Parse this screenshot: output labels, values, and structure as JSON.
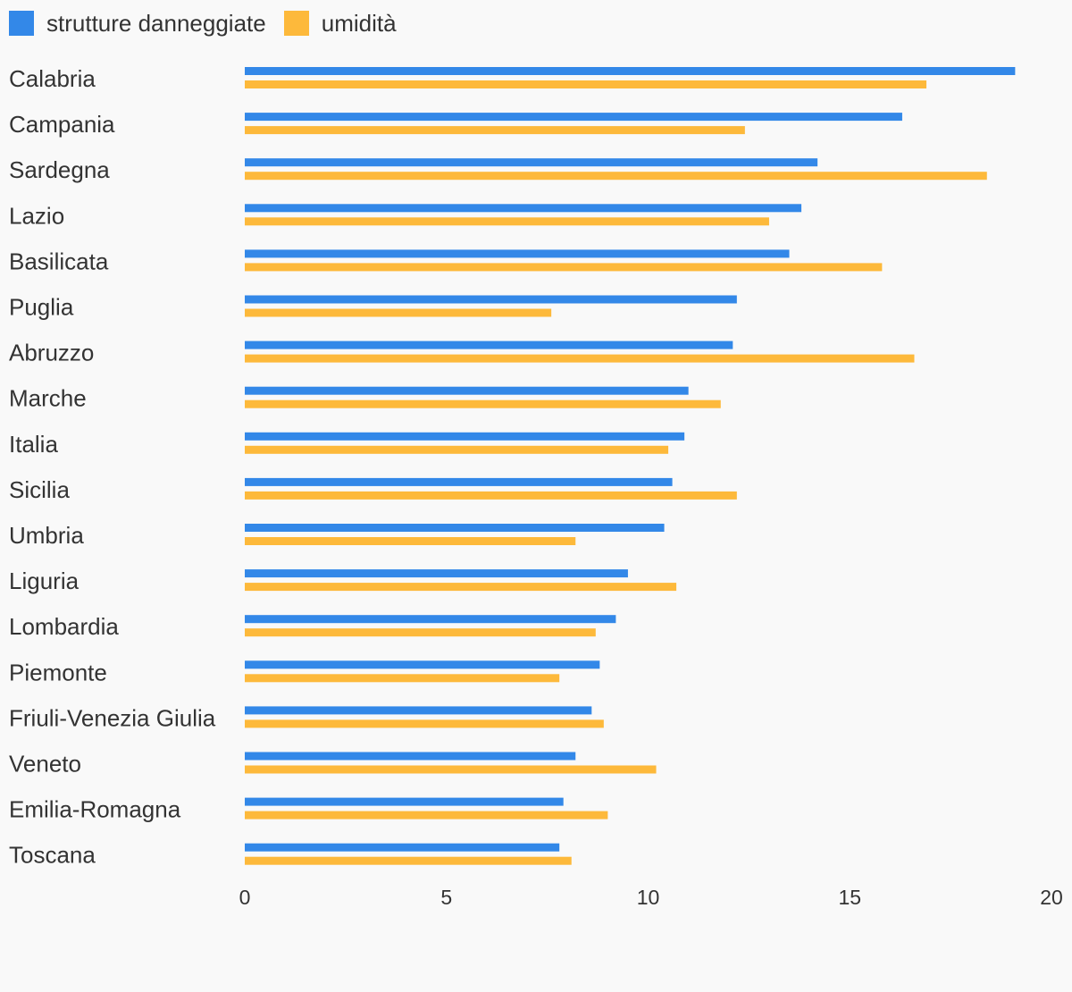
{
  "legend": {
    "items": [
      {
        "label": "strutture danneggiate",
        "color": "#3388e8"
      },
      {
        "label": "umidità",
        "color": "#fdb93b"
      }
    ]
  },
  "chart_data": {
    "type": "bar",
    "orientation": "horizontal",
    "categories": [
      "Calabria",
      "Campania",
      "Sardegna",
      "Lazio",
      "Basilicata",
      "Puglia",
      "Abruzzo",
      "Marche",
      "Italia",
      "Sicilia",
      "Umbria",
      "Liguria",
      "Lombardia",
      "Piemonte",
      "Friuli-Venezia Giulia",
      "Veneto",
      "Emilia-Romagna",
      "Toscana"
    ],
    "series": [
      {
        "name": "strutture danneggiate",
        "color": "#3388e8",
        "values": [
          19.1,
          16.3,
          14.2,
          13.8,
          13.5,
          12.2,
          12.1,
          11.0,
          10.9,
          10.6,
          10.4,
          9.5,
          9.2,
          8.8,
          8.6,
          8.2,
          7.9,
          7.8
        ]
      },
      {
        "name": "umidità",
        "color": "#fdb93b",
        "values": [
          16.9,
          12.4,
          18.4,
          13.0,
          15.8,
          7.6,
          16.6,
          11.8,
          10.5,
          12.2,
          8.2,
          10.7,
          8.7,
          7.8,
          8.9,
          10.2,
          9.0,
          8.1
        ]
      }
    ],
    "x_ticks": [
      "0",
      "5",
      "10",
      "15",
      "20"
    ],
    "xlim": [
      0,
      20
    ],
    "grid": false,
    "legend_position": "top-left"
  }
}
